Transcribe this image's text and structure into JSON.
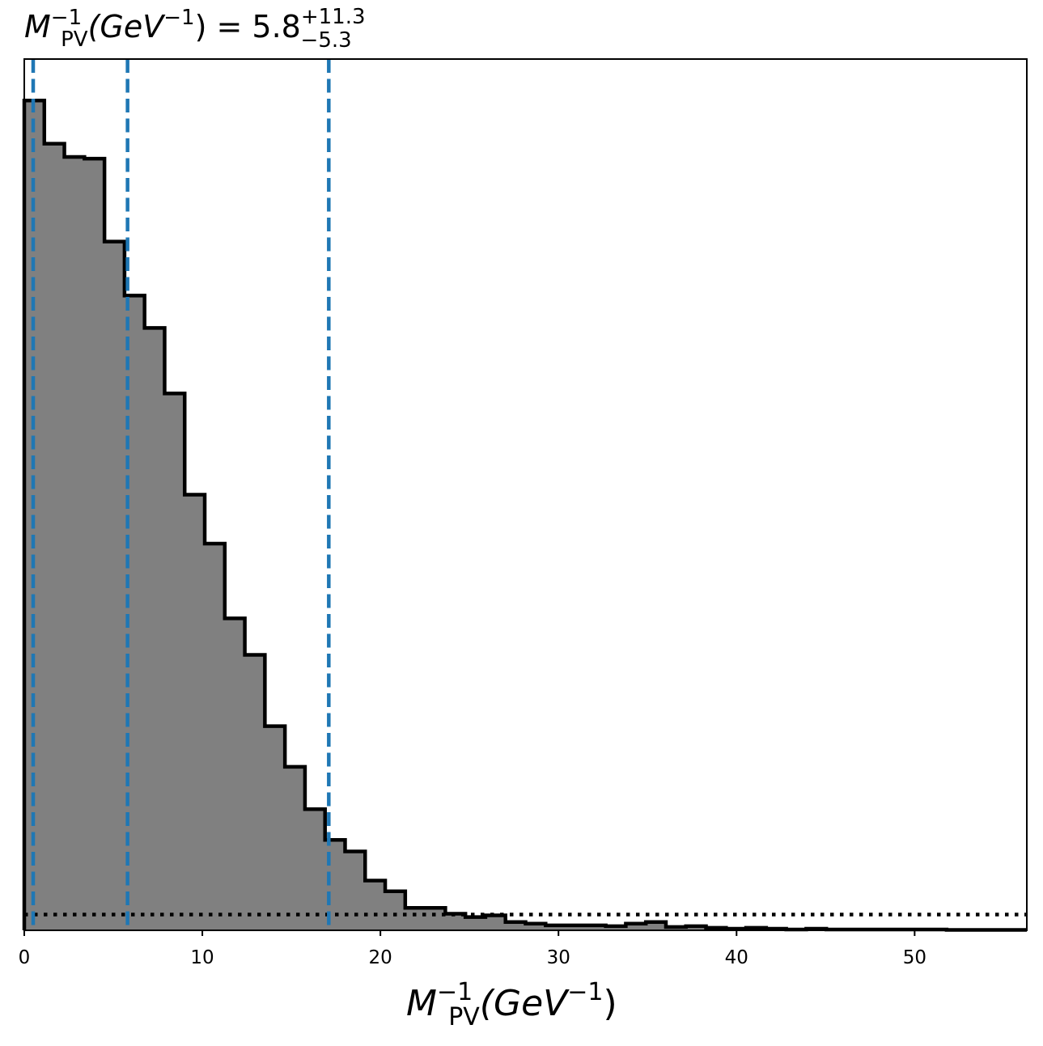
{
  "chart_data": {
    "type": "histogram",
    "title": {
      "symbol": "M",
      "sub": "PV",
      "sup": "−1",
      "unit_open": "(GeV",
      "unit_sup": "−1",
      "unit_close": ")",
      "equals": " = ",
      "value": "5.8",
      "plus": "+11.3",
      "minus": "−5.3"
    },
    "xlabel": {
      "symbol": "M",
      "sub": "PV",
      "sup": "−1",
      "unit_open": "(GeV",
      "unit_sup": "−1",
      "unit_close": ")"
    },
    "xlim": [
      0,
      56.3
    ],
    "ylim": [
      0,
      1.05
    ],
    "xticks": [
      0,
      10,
      20,
      30,
      40,
      50
    ],
    "xtick_labels": [
      "0",
      "10",
      "20",
      "30",
      "40",
      "50"
    ],
    "y_axis_ticks_shown": false,
    "bin_width": 1.126,
    "bin_start": 0,
    "counts": [
      1.0,
      0.948,
      0.932,
      0.93,
      0.83,
      0.765,
      0.726,
      0.647,
      0.525,
      0.466,
      0.376,
      0.332,
      0.246,
      0.197,
      0.146,
      0.109,
      0.095,
      0.06,
      0.047,
      0.027,
      0.027,
      0.02,
      0.016,
      0.018,
      0.01,
      0.008,
      0.006,
      0.006,
      0.006,
      0.005,
      0.008,
      0.01,
      0.004,
      0.005,
      0.003,
      0.002,
      0.003,
      0.002,
      0.001,
      0.002,
      0.001,
      0.001,
      0.001,
      0.001,
      0.001,
      0.001,
      0.0005,
      0.0005,
      0.0005,
      0.0005
    ],
    "fill_color": "#808080",
    "edge_color": "#000000",
    "quantile_lines": {
      "values": [
        0.5,
        5.8,
        17.1
      ],
      "style": "dashed",
      "color": "#1f77b4"
    },
    "reference_line": {
      "y": 0.019,
      "style": "dotted",
      "color": "#000000"
    },
    "grid": false
  }
}
